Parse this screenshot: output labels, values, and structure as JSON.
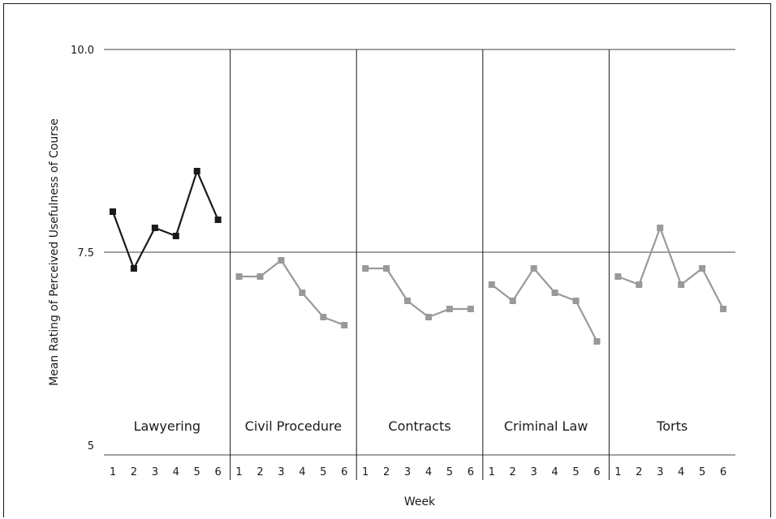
{
  "chart_data": {
    "type": "line",
    "title": "",
    "xlabel": "Week",
    "ylabel": "Mean Rating of Perceived Usefulness of Course",
    "ylim": [
      5,
      10
    ],
    "yticks": [
      "5",
      "7.5",
      "10.0"
    ],
    "weeks": [
      "1",
      "2",
      "3",
      "4",
      "5",
      "6"
    ],
    "reference_line": 7.5,
    "colors": {
      "highlight": "#1a1a1a",
      "other": "#999999"
    },
    "panels": [
      {
        "name": "Lawyering",
        "color": "highlight",
        "values": [
          8.0,
          7.3,
          7.8,
          7.7,
          8.5,
          7.9
        ]
      },
      {
        "name": "Civil Procedure",
        "color": "other",
        "values": [
          7.2,
          7.2,
          7.4,
          7.0,
          6.7,
          6.6
        ]
      },
      {
        "name": "Contracts",
        "color": "other",
        "values": [
          7.3,
          7.3,
          6.9,
          6.7,
          6.8,
          6.8
        ]
      },
      {
        "name": "Criminal Law",
        "color": "other",
        "values": [
          7.1,
          6.9,
          7.3,
          7.0,
          6.9,
          6.4
        ]
      },
      {
        "name": "Torts",
        "color": "other",
        "values": [
          7.2,
          7.1,
          7.8,
          7.1,
          7.3,
          6.8
        ]
      }
    ]
  }
}
